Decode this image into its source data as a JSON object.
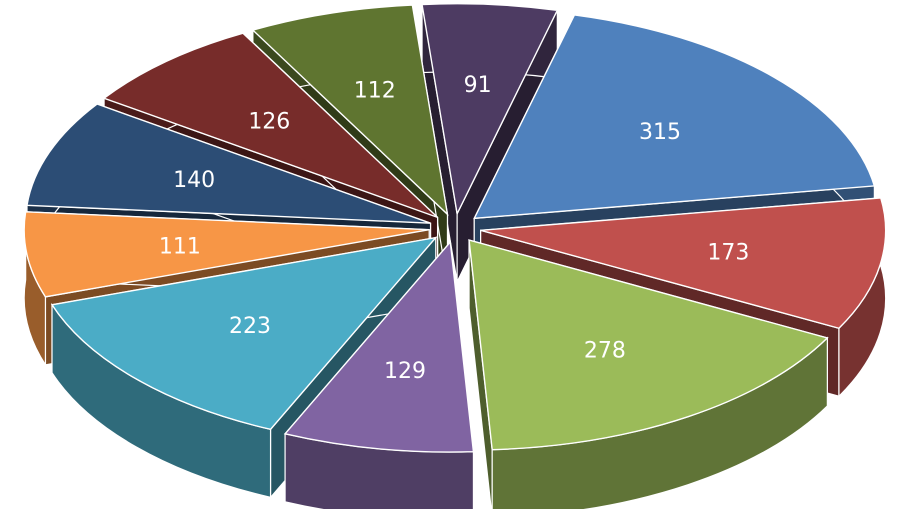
{
  "chart_data": {
    "type": "pie",
    "exploded": true,
    "three_d": true,
    "title": "",
    "legend": "none",
    "labels_shown": "values",
    "slices": [
      {
        "value": 315,
        "color": "#4f81bd"
      },
      {
        "value": 173,
        "color": "#c0504d"
      },
      {
        "value": 278,
        "color": "#9bbb59"
      },
      {
        "value": 129,
        "color": "#8064a2"
      },
      {
        "value": 223,
        "color": "#4bacc6"
      },
      {
        "value": 111,
        "color": "#f79646"
      },
      {
        "value": 140,
        "color": "#2c4d75"
      },
      {
        "value": 126,
        "color": "#772c2a"
      },
      {
        "value": 112,
        "color": "#5f7530"
      },
      {
        "value": 91,
        "color": "#4d3b62"
      }
    ]
  }
}
